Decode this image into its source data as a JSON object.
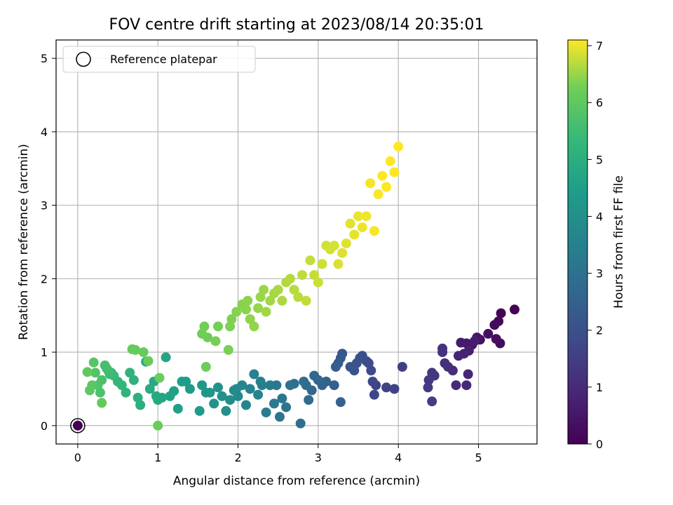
{
  "chart_data": {
    "type": "scatter",
    "title": "FOV centre drift starting at 2023/08/14 20:35:01",
    "xlabel": "Angular distance from reference (arcmin)",
    "ylabel": "Rotation from reference (arcmin)",
    "xlim": [
      -0.27,
      5.73
    ],
    "ylim": [
      -0.25,
      5.25
    ],
    "x_ticks": [
      0,
      1,
      2,
      3,
      4,
      5
    ],
    "y_ticks": [
      0,
      1,
      2,
      3,
      4,
      5
    ],
    "grid": true,
    "legend": {
      "placement": "upper-left",
      "entries": [
        "Reference platepar"
      ]
    },
    "reference_point": {
      "x": 0,
      "y": 0
    },
    "colorbar": {
      "label": "Hours from first FF file",
      "range": [
        0,
        7.1
      ],
      "ticks": [
        0,
        1,
        2,
        3,
        4,
        5,
        6,
        7
      ],
      "colormap": "viridis"
    },
    "series": [
      {
        "color_by": "hours",
        "points": [
          [
            0.0,
            0.0,
            0.0
          ],
          [
            5.45,
            1.58,
            0.05
          ],
          [
            5.28,
            1.53,
            0.1
          ],
          [
            5.25,
            1.42,
            0.15
          ],
          [
            5.2,
            1.37,
            0.2
          ],
          [
            5.27,
            1.12,
            0.25
          ],
          [
            5.22,
            1.18,
            0.3
          ],
          [
            5.12,
            1.25,
            0.35
          ],
          [
            5.02,
            1.17,
            0.4
          ],
          [
            4.98,
            1.2,
            0.45
          ],
          [
            4.92,
            1.1,
            0.5
          ],
          [
            4.85,
            1.12,
            0.55
          ],
          [
            4.78,
            1.13,
            0.6
          ],
          [
            4.95,
            1.15,
            0.65
          ],
          [
            4.88,
            1.02,
            0.7
          ],
          [
            4.82,
            0.98,
            0.75
          ],
          [
            4.75,
            0.95,
            0.8
          ],
          [
            4.87,
            0.7,
            0.85
          ],
          [
            4.85,
            0.55,
            0.9
          ],
          [
            4.72,
            0.55,
            0.95
          ],
          [
            4.68,
            0.75,
            1.0
          ],
          [
            4.62,
            0.8,
            1.05
          ],
          [
            4.58,
            0.85,
            1.1
          ],
          [
            4.55,
            1.05,
            1.15
          ],
          [
            4.55,
            1.0,
            1.2
          ],
          [
            4.45,
            0.68,
            1.25
          ],
          [
            4.42,
            0.72,
            1.3
          ],
          [
            4.38,
            0.62,
            1.35
          ],
          [
            4.37,
            0.52,
            1.4
          ],
          [
            4.42,
            0.33,
            1.45
          ],
          [
            4.05,
            0.8,
            1.5
          ],
          [
            3.95,
            0.5,
            1.55
          ],
          [
            3.85,
            0.52,
            1.6
          ],
          [
            3.72,
            0.55,
            1.65
          ],
          [
            3.7,
            0.42,
            1.7
          ],
          [
            3.68,
            0.6,
            1.75
          ],
          [
            3.66,
            0.75,
            1.8
          ],
          [
            3.63,
            0.85,
            1.85
          ],
          [
            3.6,
            0.88,
            1.9
          ],
          [
            3.55,
            0.95,
            1.95
          ],
          [
            3.52,
            0.92,
            2.0
          ],
          [
            3.48,
            0.85,
            2.05
          ],
          [
            3.45,
            0.75,
            2.1
          ],
          [
            3.4,
            0.8,
            2.15
          ],
          [
            3.3,
            0.98,
            2.2
          ],
          [
            3.28,
            0.92,
            2.25
          ],
          [
            3.25,
            0.85,
            2.3
          ],
          [
            3.22,
            0.8,
            2.35
          ],
          [
            3.2,
            0.55,
            2.4
          ],
          [
            3.28,
            0.32,
            2.45
          ],
          [
            3.1,
            0.6,
            2.5
          ],
          [
            3.05,
            0.55,
            2.55
          ],
          [
            3.0,
            0.62,
            2.6
          ],
          [
            2.95,
            0.68,
            2.65
          ],
          [
            2.92,
            0.48,
            2.7
          ],
          [
            2.88,
            0.35,
            2.75
          ],
          [
            2.85,
            0.55,
            2.8
          ],
          [
            2.82,
            0.6,
            2.85
          ],
          [
            2.78,
            0.03,
            2.9
          ],
          [
            2.7,
            0.57,
            2.95
          ],
          [
            2.65,
            0.55,
            3.0
          ],
          [
            2.6,
            0.25,
            3.05
          ],
          [
            2.55,
            0.37,
            3.1
          ],
          [
            2.52,
            0.12,
            3.15
          ],
          [
            2.48,
            0.55,
            3.2
          ],
          [
            2.45,
            0.3,
            3.25
          ],
          [
            2.4,
            0.55,
            3.3
          ],
          [
            2.35,
            0.18,
            3.35
          ],
          [
            2.3,
            0.55,
            3.4
          ],
          [
            2.28,
            0.6,
            3.45
          ],
          [
            2.25,
            0.42,
            3.5
          ],
          [
            2.2,
            0.7,
            3.55
          ],
          [
            2.15,
            0.5,
            3.6
          ],
          [
            2.1,
            0.28,
            3.65
          ],
          [
            2.05,
            0.55,
            3.7
          ],
          [
            2.0,
            0.4,
            3.75
          ],
          [
            1.98,
            0.5,
            3.8
          ],
          [
            1.95,
            0.48,
            3.85
          ],
          [
            1.9,
            0.35,
            3.9
          ],
          [
            1.85,
            0.2,
            3.95
          ],
          [
            1.8,
            0.4,
            4.0
          ],
          [
            1.75,
            0.52,
            4.05
          ],
          [
            1.7,
            0.3,
            4.1
          ],
          [
            1.65,
            0.45,
            4.15
          ],
          [
            1.6,
            0.45,
            4.2
          ],
          [
            1.55,
            0.55,
            4.25
          ],
          [
            1.52,
            0.2,
            4.3
          ],
          [
            1.4,
            0.5,
            4.35
          ],
          [
            1.35,
            0.6,
            4.4
          ],
          [
            1.3,
            0.6,
            4.45
          ],
          [
            1.25,
            0.23,
            4.5
          ],
          [
            1.2,
            0.47,
            4.55
          ],
          [
            1.15,
            0.4,
            4.6
          ],
          [
            1.1,
            0.93,
            4.65
          ],
          [
            1.05,
            0.38,
            4.7
          ],
          [
            1.0,
            0.35,
            4.75
          ],
          [
            0.98,
            0.4,
            4.8
          ],
          [
            0.95,
            0.6,
            4.85
          ],
          [
            0.9,
            0.5,
            4.9
          ],
          [
            0.85,
            0.87,
            4.95
          ],
          [
            0.78,
            0.28,
            5.0
          ],
          [
            0.75,
            0.38,
            5.05
          ],
          [
            0.7,
            0.62,
            5.1
          ],
          [
            0.65,
            0.72,
            5.15
          ],
          [
            0.6,
            0.45,
            5.2
          ],
          [
            0.55,
            0.55,
            5.25
          ],
          [
            0.5,
            0.6,
            5.3
          ],
          [
            0.45,
            0.68,
            5.35
          ],
          [
            0.42,
            0.72,
            5.4
          ],
          [
            0.4,
            0.7,
            5.45
          ],
          [
            0.38,
            0.75,
            5.5
          ],
          [
            0.36,
            0.78,
            5.55
          ],
          [
            0.34,
            0.82,
            5.6
          ],
          [
            0.3,
            0.62,
            5.65
          ],
          [
            0.28,
            0.45,
            5.7
          ],
          [
            0.25,
            0.55,
            5.75
          ],
          [
            0.22,
            0.72,
            5.8
          ],
          [
            0.2,
            0.86,
            5.85
          ],
          [
            0.18,
            0.55,
            5.9
          ],
          [
            0.15,
            0.48,
            5.95
          ],
          [
            0.12,
            0.73,
            6.0
          ],
          [
            0.3,
            0.31,
            6.02
          ],
          [
            0.72,
            1.03,
            6.04
          ],
          [
            0.68,
            1.04,
            6.06
          ],
          [
            0.82,
            1.0,
            6.08
          ],
          [
            0.88,
            0.88,
            6.1
          ],
          [
            1.0,
            0.0,
            6.12
          ],
          [
            1.02,
            0.65,
            6.14
          ],
          [
            1.6,
            0.8,
            6.16
          ],
          [
            1.62,
            1.2,
            6.18
          ],
          [
            1.55,
            1.25,
            6.2
          ],
          [
            1.58,
            1.35,
            6.22
          ],
          [
            1.75,
            1.35,
            6.24
          ],
          [
            1.72,
            1.15,
            6.26
          ],
          [
            1.88,
            1.03,
            6.28
          ],
          [
            1.9,
            1.35,
            6.3
          ],
          [
            1.92,
            1.45,
            6.32
          ],
          [
            1.98,
            1.55,
            6.34
          ],
          [
            2.05,
            1.65,
            6.36
          ],
          [
            2.1,
            1.58,
            6.38
          ],
          [
            2.12,
            1.7,
            6.4
          ],
          [
            2.15,
            1.45,
            6.42
          ],
          [
            2.2,
            1.35,
            6.44
          ],
          [
            2.25,
            1.6,
            6.46
          ],
          [
            2.28,
            1.75,
            6.48
          ],
          [
            2.32,
            1.85,
            6.5
          ],
          [
            2.35,
            1.55,
            6.52
          ],
          [
            2.4,
            1.7,
            6.54
          ],
          [
            2.45,
            1.8,
            6.56
          ],
          [
            2.5,
            1.85,
            6.58
          ],
          [
            2.55,
            1.7,
            6.6
          ],
          [
            2.6,
            1.95,
            6.62
          ],
          [
            2.65,
            2.0,
            6.64
          ],
          [
            2.7,
            1.85,
            6.66
          ],
          [
            2.75,
            1.75,
            6.68
          ],
          [
            2.8,
            2.05,
            6.7
          ],
          [
            2.85,
            1.7,
            6.72
          ],
          [
            2.9,
            2.25,
            6.74
          ],
          [
            2.95,
            2.05,
            6.76
          ],
          [
            3.0,
            1.95,
            6.78
          ],
          [
            3.05,
            2.2,
            6.8
          ],
          [
            3.1,
            2.45,
            6.82
          ],
          [
            3.15,
            2.4,
            6.84
          ],
          [
            3.2,
            2.45,
            6.86
          ],
          [
            3.25,
            2.2,
            6.88
          ],
          [
            3.3,
            2.35,
            6.9
          ],
          [
            3.35,
            2.48,
            6.92
          ],
          [
            3.4,
            2.75,
            6.94
          ],
          [
            3.45,
            2.6,
            6.96
          ],
          [
            3.5,
            2.85,
            6.98
          ],
          [
            3.55,
            2.7,
            7.0
          ],
          [
            3.6,
            2.85,
            7.02
          ],
          [
            3.65,
            3.3,
            7.04
          ],
          [
            3.7,
            2.65,
            7.06
          ],
          [
            3.75,
            3.15,
            7.08
          ],
          [
            3.8,
            3.4,
            7.1
          ],
          [
            3.85,
            3.25,
            7.1
          ],
          [
            3.9,
            3.6,
            7.1
          ],
          [
            3.95,
            3.45,
            7.1
          ],
          [
            4.0,
            3.8,
            7.1
          ]
        ]
      }
    ]
  }
}
